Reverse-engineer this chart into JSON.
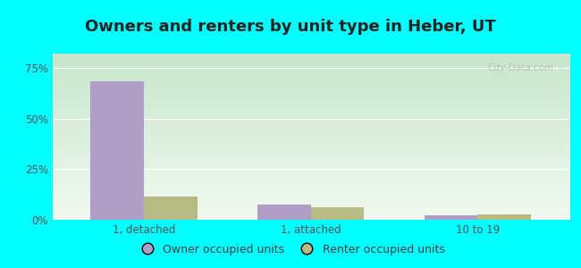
{
  "title": "Owners and renters by unit type in Heber, UT",
  "categories": [
    "1, detached",
    "1, attached",
    "10 to 19"
  ],
  "owner_values": [
    68.5,
    7.5,
    2.0
  ],
  "renter_values": [
    11.5,
    6.0,
    2.5
  ],
  "owner_color": "#b09ec9",
  "renter_color": "#b5bb82",
  "yticks": [
    0,
    25,
    50,
    75
  ],
  "ytick_labels": [
    "0%",
    "25%",
    "50%",
    "75%"
  ],
  "ylim_max": 82,
  "outer_bg": "#00ffff",
  "grad_bottom_color": "#f0faf0",
  "grad_top_color": "#c8e6cb",
  "watermark": "City-Data.com",
  "legend_owner": "Owner occupied units",
  "legend_renter": "Renter occupied units",
  "bar_width": 0.32,
  "title_fontsize": 13,
  "tick_fontsize": 8.5,
  "legend_fontsize": 9,
  "title_color": "#222222",
  "tick_color": "#555555"
}
